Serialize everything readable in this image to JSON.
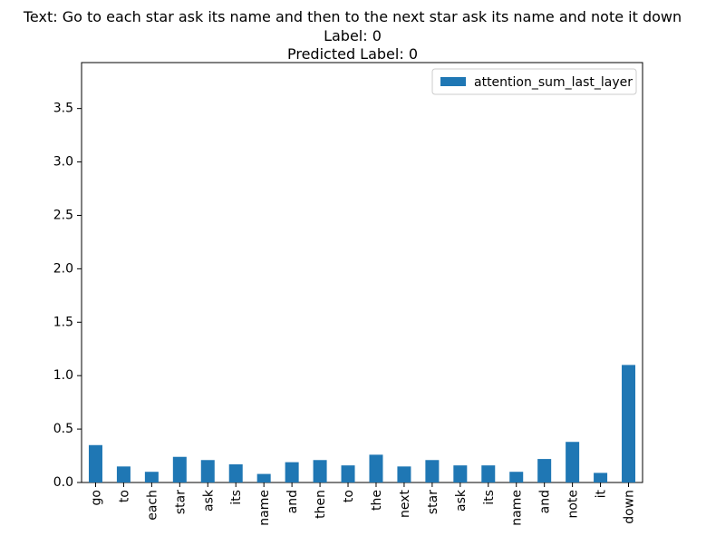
{
  "chart_data": {
    "type": "bar",
    "title_lines": [
      "Text: Go to each star ask its name and then to the next star ask its name and note it down",
      "Label: 0",
      "Predicted Label: 0"
    ],
    "xlabel": "",
    "ylabel": "",
    "ylim": [
      0,
      3.93
    ],
    "yticks": [
      0.0,
      0.5,
      1.0,
      1.5,
      2.0,
      2.5,
      3.0,
      3.5
    ],
    "ytick_labels": [
      "0.0",
      "0.5",
      "1.0",
      "1.5",
      "2.0",
      "2.5",
      "3.0",
      "3.5"
    ],
    "categories": [
      "go",
      "to",
      "each",
      "star",
      "ask",
      "its",
      "name",
      "and",
      "then",
      "to",
      "the",
      "next",
      "star",
      "ask",
      "its",
      "name",
      "and",
      "note",
      "it",
      "down"
    ],
    "series": [
      {
        "name": "attention_sum_last_layer",
        "color": "#1f77b4",
        "values": [
          0.35,
          0.15,
          0.1,
          0.24,
          0.21,
          0.17,
          0.08,
          0.19,
          0.21,
          0.16,
          0.26,
          0.15,
          0.21,
          0.16,
          0.16,
          0.1,
          0.22,
          0.38,
          0.09,
          1.1
        ]
      }
    ],
    "legend": {
      "position": "top-right",
      "entries": [
        "attention_sum_last_layer"
      ]
    },
    "grid": false
  }
}
